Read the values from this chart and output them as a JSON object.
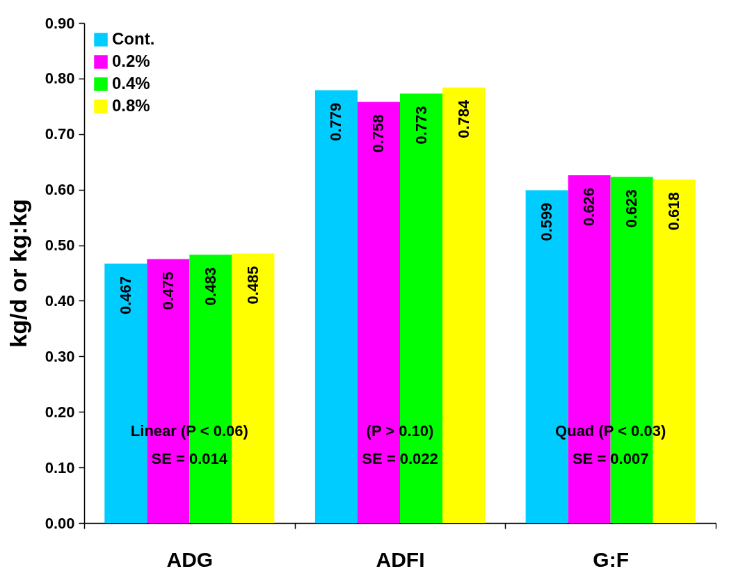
{
  "chart_data": {
    "type": "bar",
    "ylabel": "kg/d or kg:kg",
    "categories": [
      "ADG",
      "ADFI",
      "G:F"
    ],
    "series": [
      {
        "name": "Cont.",
        "color": "#00ccff",
        "values": [
          0.467,
          0.779,
          0.599
        ]
      },
      {
        "name": "0.2%",
        "color": "#ff00ff",
        "values": [
          0.475,
          0.758,
          0.626
        ]
      },
      {
        "name": "0.4%",
        "color": "#00ff00",
        "values": [
          0.483,
          0.773,
          0.623
        ]
      },
      {
        "name": "0.8%",
        "color": "#ffff00",
        "values": [
          0.485,
          0.784,
          0.618
        ]
      }
    ],
    "ylim": [
      0,
      0.9
    ],
    "yticks": [
      {
        "value": 0,
        "label": "0.00"
      },
      {
        "value": 0.1,
        "label": "0.10"
      },
      {
        "value": 0.2,
        "label": "0.20"
      },
      {
        "value": 0.3,
        "label": "0.30"
      },
      {
        "value": 0.4,
        "label": "0.40"
      },
      {
        "value": 0.5,
        "label": "0.50"
      },
      {
        "value": 0.6,
        "label": "0.60"
      },
      {
        "value": 0.7,
        "label": "0.70"
      },
      {
        "value": 0.8,
        "label": "0.80"
      },
      {
        "value": 0.9,
        "label": "0.90"
      }
    ],
    "data_labels": true,
    "grid": false,
    "legend": "top left",
    "annotations": [
      {
        "text": "Linear (P < 0.06)",
        "x": "ADG",
        "y": 0.165
      },
      {
        "text": "SE = 0.014",
        "x": "ADG",
        "y": 0.115
      },
      {
        "text": "(P > 0.10)",
        "x": "ADFI",
        "y": 0.165
      },
      {
        "text": "SE = 0.022",
        "x": "ADFI",
        "y": 0.115
      },
      {
        "text": "Quad (P < 0.03)",
        "x": "G:F",
        "y": 0.165
      },
      {
        "text": "SE = 0.007",
        "x": "G:F",
        "y": 0.115
      }
    ]
  }
}
